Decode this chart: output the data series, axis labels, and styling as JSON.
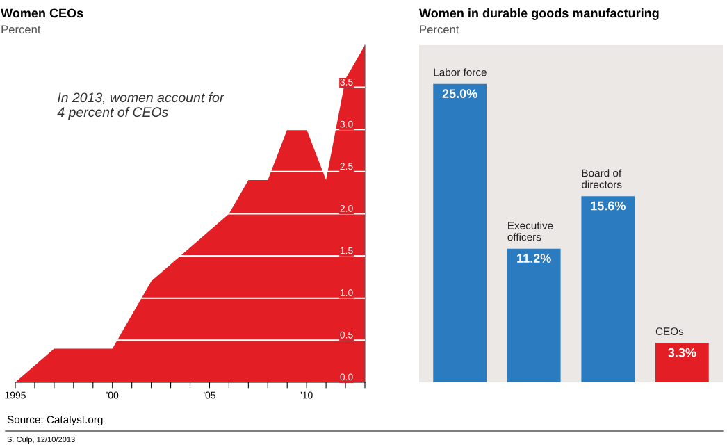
{
  "chart_data": [
    {
      "type": "area",
      "title": "Women CEOs",
      "subtitle": "Percent",
      "x": [
        1995,
        1996,
        1997,
        1998,
        1999,
        2000,
        2001,
        2002,
        2003,
        2004,
        2005,
        2006,
        2007,
        2008,
        2009,
        2010,
        2011,
        2012,
        2013
      ],
      "series": [
        {
          "color": "#e31e24",
          "values": [
            0,
            0.2,
            0.4,
            0.4,
            0.4,
            0.4,
            0.8,
            1.2,
            1.4,
            1.6,
            1.8,
            2.0,
            2.4,
            2.4,
            3.0,
            3.0,
            2.4,
            3.6,
            4.0
          ]
        }
      ],
      "xlim": [
        1995,
        2013
      ],
      "xticks": [
        1995,
        {
          "value": 1996,
          "label": null
        },
        {
          "value": 1997,
          "label": null
        },
        {
          "value": 1998,
          "label": null
        },
        {
          "value": 1999,
          "label": null
        },
        {
          "value": 2000,
          "label": "'00"
        },
        {
          "value": 2001,
          "label": null
        },
        {
          "value": 2002,
          "label": null
        },
        {
          "value": 2003,
          "label": null
        },
        {
          "value": 2004,
          "label": null
        },
        {
          "value": 2005,
          "label": "'05"
        },
        {
          "value": 2006,
          "label": null
        },
        {
          "value": 2007,
          "label": null
        },
        {
          "value": 2008,
          "label": null
        },
        {
          "value": 2009,
          "label": null
        },
        {
          "value": 2010,
          "label": "'10"
        },
        {
          "value": 2011,
          "label": null
        },
        {
          "value": 2012,
          "label": null
        },
        {
          "value": 2013,
          "label": null
        }
      ],
      "ylim": [
        0,
        4.0
      ],
      "yticks": [
        {
          "value": 0,
          "label": "0.0"
        },
        0.5,
        {
          "value": 1,
          "label": "1.0"
        },
        1.5,
        {
          "value": 2,
          "label": "2.0"
        },
        2.5,
        {
          "value": 3,
          "label": "3.0"
        },
        3.5
      ],
      "grid": "y",
      "annotations": [
        "In 2013, women account for\n4 percent of CEOs",
        "Source: Catalyst.org",
        "S. Culp, 12/10/2013"
      ]
    },
    {
      "type": "bar",
      "title": "Women in durable goods manufacturing",
      "subtitle": "Percent",
      "categories": [
        "Labor force",
        "Executive\nofficers",
        "Board of\ndirectors",
        "CEOs"
      ],
      "values": [
        25.0,
        11.2,
        15.6,
        3.3
      ],
      "colors": [
        "#2a7bbf",
        "#2a7bbf",
        "#2a7bbf",
        "#e31e24"
      ],
      "value_labels": [
        "25.0%",
        "11.2%",
        "15.6%",
        "3.3%"
      ]
    }
  ]
}
